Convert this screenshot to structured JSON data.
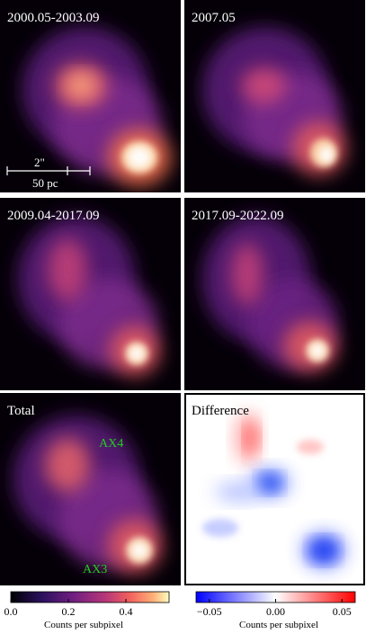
{
  "panels": [
    {
      "label": "2000.05-2003.09"
    },
    {
      "label": "2007.05"
    },
    {
      "label": "2009.04-2017.09"
    },
    {
      "label": "2017.09-2022.09"
    },
    {
      "label": "Total",
      "annotations": [
        "AX4",
        "AX3"
      ]
    },
    {
      "label": "Difference"
    }
  ],
  "scale_bar": {
    "angular": "2\"",
    "physical": "50 pc"
  },
  "colorbars": [
    {
      "label": "Counts per subpixel",
      "lim": [
        0,
        0.55
      ],
      "ticks": [
        {
          "value": 0,
          "label": "0.0"
        },
        0.2,
        0.4
      ]
    },
    {
      "label": "Counts per subpixel",
      "lim": [
        -0.06,
        0.06
      ],
      "ticks": [
        {
          "value": -0.05,
          "label": "−0.05"
        },
        {
          "value": 0,
          "label": "0.00"
        },
        0.05
      ]
    }
  ]
}
